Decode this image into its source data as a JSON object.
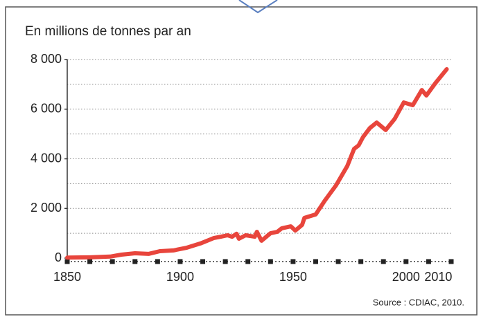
{
  "chart_data": {
    "type": "line",
    "axis_label": "En millions de tonnes par an",
    "source": "Source : CDIAC, 2010.",
    "xlim": [
      1850,
      2020
    ],
    "ylim": [
      0,
      8000
    ],
    "xticks": [
      1850,
      1900,
      1950,
      2000,
      2010
    ],
    "minor_xticks": [
      1850,
      1860,
      1870,
      1880,
      1890,
      1900,
      1910,
      1920,
      1930,
      1940,
      1950,
      1960,
      1970,
      1980,
      1990,
      2000,
      2010,
      2020
    ],
    "yticks": [
      {
        "value": 0,
        "label": "0"
      },
      {
        "value": 2000,
        "label": "2 000"
      },
      {
        "value": 4000,
        "label": "4 000"
      },
      {
        "value": 6000,
        "label": "6 000"
      },
      {
        "value": 8000,
        "label": "8 000"
      }
    ],
    "grid_lines": [
      1000,
      2000,
      3000,
      4000,
      5000,
      6000,
      7000,
      8000
    ],
    "grid": true,
    "series": [
      {
        "color": "#e8453c",
        "x": [
          1850,
          1860,
          1869,
          1874,
          1880,
          1886,
          1891,
          1897,
          1903,
          1909,
          1915,
          1918,
          1921,
          1923,
          1925,
          1926,
          1929,
          1933,
          1934,
          1936,
          1940,
          1943,
          1945,
          1949,
          1951,
          1954,
          1955,
          1960,
          1964,
          1969,
          1974,
          1977,
          1979,
          1981,
          1984,
          1987,
          1991,
          1995,
          1999,
          2003,
          2007,
          2009,
          2013,
          2018
        ],
        "values": [
          20,
          30,
          60,
          140,
          195,
          170,
          280,
          310,
          420,
          590,
          810,
          860,
          920,
          860,
          980,
          780,
          920,
          860,
          1060,
          700,
          1000,
          1060,
          1200,
          1280,
          1110,
          1340,
          1620,
          1760,
          2310,
          2930,
          3710,
          4400,
          4540,
          4880,
          5240,
          5460,
          5160,
          5610,
          6270,
          6160,
          6770,
          6550,
          7050,
          7610
        ]
      }
    ]
  }
}
